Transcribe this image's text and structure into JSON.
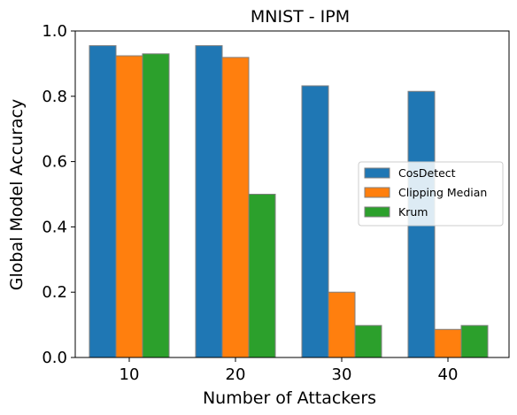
{
  "chart_data": {
    "type": "bar",
    "title": "MNIST - IPM",
    "xlabel": "Number of Attackers",
    "ylabel": "Global Model Accuracy",
    "categories": [
      "10",
      "20",
      "30",
      "40"
    ],
    "ylim": [
      0,
      1.0
    ],
    "yticks": [
      "0.0",
      "0.2",
      "0.4",
      "0.6",
      "0.8",
      "1.0"
    ],
    "grid": false,
    "legend_position": "center-right",
    "series": [
      {
        "name": "CosDetect",
        "color": "#1f77b4",
        "values": [
          0.955,
          0.955,
          0.832,
          0.815
        ]
      },
      {
        "name": "Clipping Median",
        "color": "#ff7f0e",
        "values": [
          0.924,
          0.919,
          0.2,
          0.086
        ]
      },
      {
        "name": "Krum",
        "color": "#2ca02c",
        "values": [
          0.93,
          0.5,
          0.098,
          0.098
        ]
      }
    ]
  }
}
